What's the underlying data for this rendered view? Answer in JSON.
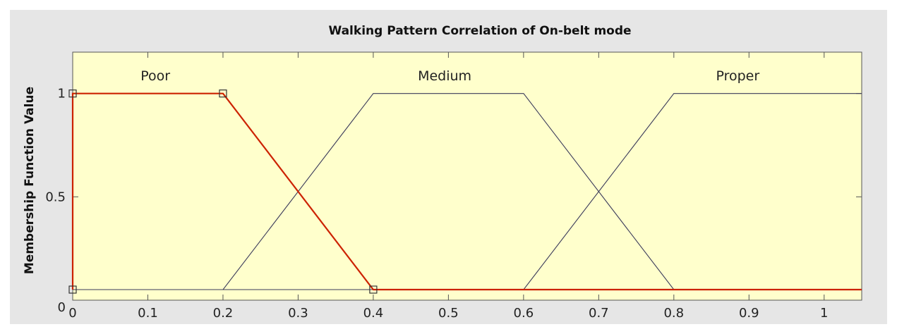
{
  "chart_data": {
    "type": "line",
    "title": "Walking Pattern Correlation of On-belt mode",
    "xlabel": "",
    "ylabel": "Membership Function Value",
    "xlim": [
      0,
      1.05
    ],
    "ylim": [
      0,
      1.2
    ],
    "x_ticks": [
      "0",
      "0.1",
      "0.2",
      "0.3",
      "0.4",
      "0.5",
      "0.6",
      "0.7",
      "0.8",
      "0.9",
      "1"
    ],
    "y_ticks": [
      "0",
      "0.5",
      "1"
    ],
    "grid": false,
    "background": "#ffffcc",
    "series": [
      {
        "name": "Poor",
        "color": "#cc2200",
        "highlighted": true,
        "x": [
          0,
          0,
          0.2,
          0.4,
          1.05
        ],
        "y": [
          0,
          1,
          1,
          0,
          0
        ],
        "markers": [
          [
            0,
            1
          ],
          [
            0.2,
            1
          ],
          [
            0.4,
            0
          ],
          [
            0,
            0
          ]
        ]
      },
      {
        "name": "Medium",
        "color": "#3a3a5a",
        "x": [
          0,
          0.2,
          0.4,
          0.6,
          0.8,
          1.05
        ],
        "y": [
          0,
          0,
          1,
          1,
          0,
          0
        ]
      },
      {
        "name": "Proper",
        "color": "#3a3a5a",
        "x": [
          0,
          0.6,
          0.8,
          1.05
        ],
        "y": [
          0,
          0,
          1,
          1
        ]
      }
    ]
  }
}
